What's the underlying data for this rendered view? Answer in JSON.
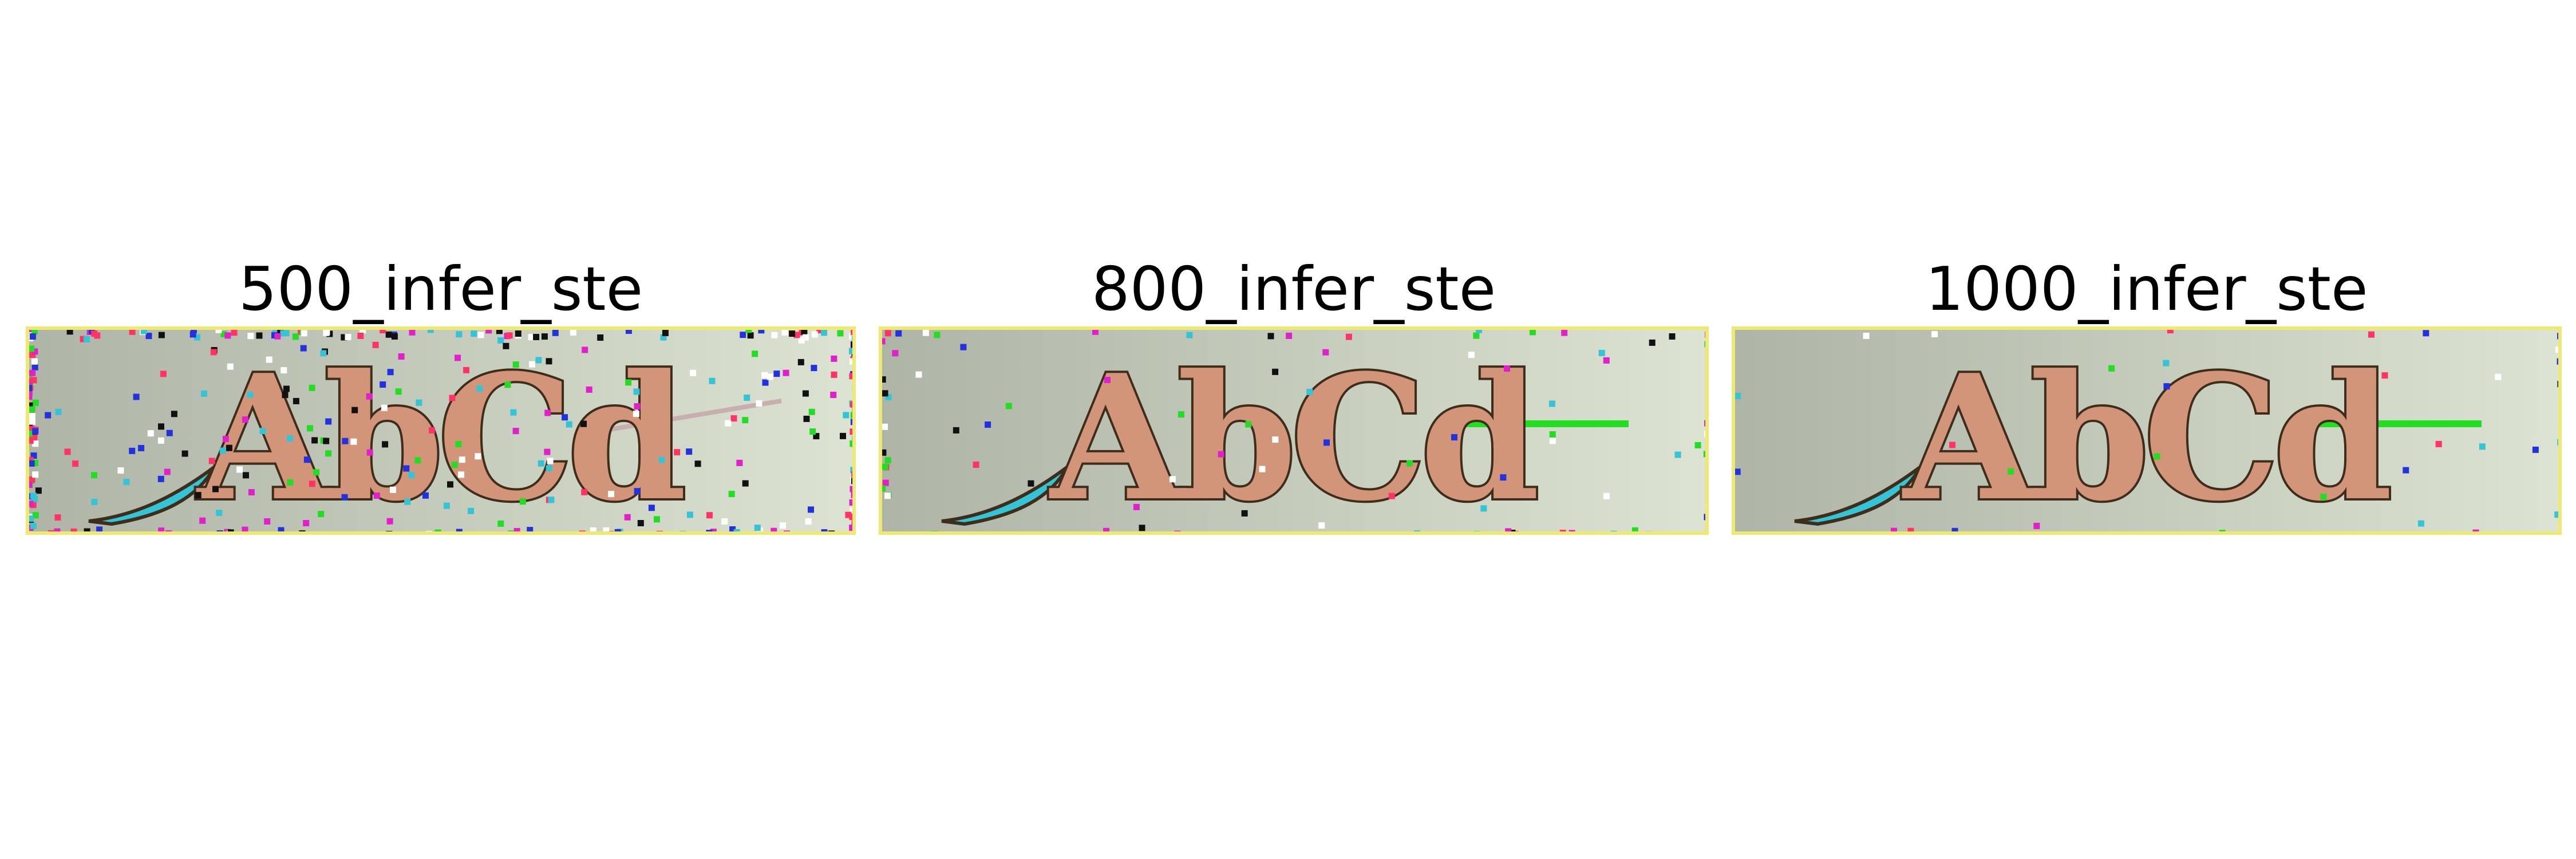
{
  "panels": [
    {
      "title": "500_infer_ste",
      "caption_text": "AbCd",
      "noise_level": "high"
    },
    {
      "title": "800_infer_ste",
      "caption_text": "AbCd",
      "noise_level": "medium"
    },
    {
      "title": "1000_infer_ste",
      "caption_text": "AbCd",
      "noise_level": "low"
    }
  ],
  "colors": {
    "captcha_background_left": "#aeb4a6",
    "captcha_background_right": "#dde3d2",
    "letter_fill": "#d2957a",
    "letter_outline": "#3d2d1a",
    "accent_cyan": "#35c4d6",
    "accent_green": "#22dd22",
    "accent_magenta": "#e020c8",
    "border_yellow": "#efe873"
  }
}
